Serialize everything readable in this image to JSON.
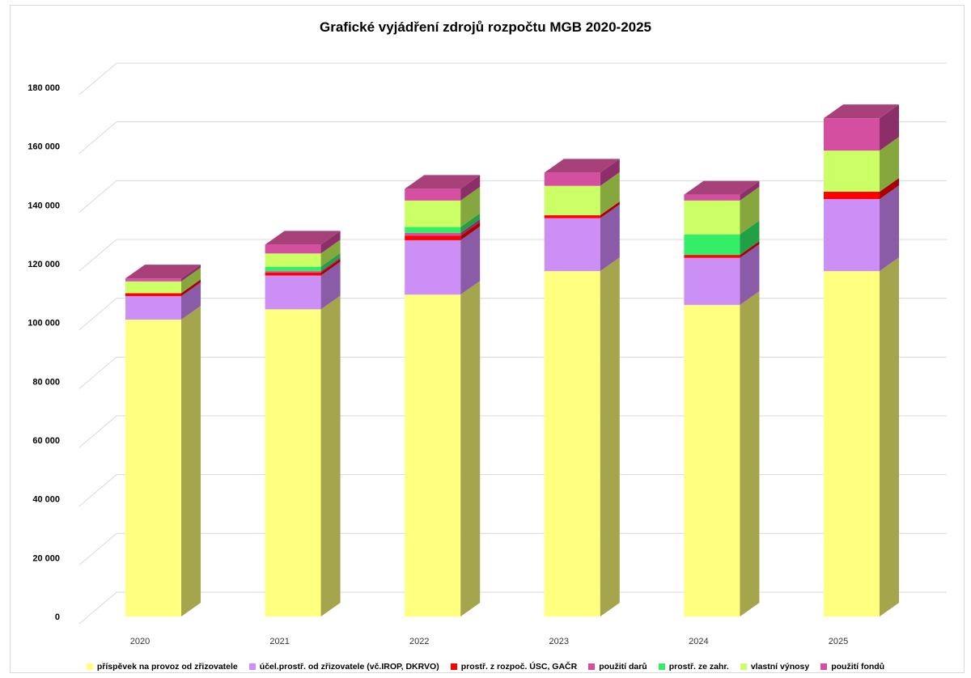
{
  "chart_data": {
    "type": "bar",
    "stacked": true,
    "three_d": true,
    "title": "Grafické vyjádření zdrojů rozpočtu MGB 2020-2025",
    "xlabel": "",
    "ylabel": "",
    "categories": [
      "2020",
      "2021",
      "2022",
      "2023",
      "2024",
      "2025"
    ],
    "ylim": [
      0,
      180000
    ],
    "yticks": [
      {
        "value": 0,
        "label": "0"
      },
      {
        "value": 20000,
        "label": "20 000"
      },
      {
        "value": 40000,
        "label": "40 000"
      },
      {
        "value": 60000,
        "label": "60 000"
      },
      {
        "value": 80000,
        "label": "80 000"
      },
      {
        "value": 100000,
        "label": "100 000"
      },
      {
        "value": 120000,
        "label": "120 000"
      },
      {
        "value": 140000,
        "label": "140 000"
      },
      {
        "value": 160000,
        "label": "160 000"
      },
      {
        "value": 180000,
        "label": "180 000"
      }
    ],
    "grid": true,
    "legend_position": "bottom",
    "series": [
      {
        "name": "příspěvek na provoz od zřizovatele",
        "color": "#ffff80",
        "side_color": "#a5a54d",
        "values": [
          101000,
          104500,
          109500,
          117500,
          106000,
          117500
        ]
      },
      {
        "name": "účel.prostř. od zřizovatele (vč.IROP, DKRVO)",
        "color": "#cc8ff5",
        "side_color": "#8a5ca8",
        "values": [
          8000,
          11500,
          18500,
          18000,
          16000,
          24500
        ]
      },
      {
        "name": "prostř. z rozpoč. ÚSC, GAČR",
        "color": "#ff0000",
        "side_color": "#a80000",
        "values": [
          1000,
          1000,
          1500,
          1000,
          1000,
          2500
        ]
      },
      {
        "name": "použití darů",
        "color": "#d44fa0",
        "side_color": "#8c2f68",
        "values": [
          0,
          500,
          1000,
          0,
          0,
          0
        ]
      },
      {
        "name": "prostř. ze zahr.",
        "color": "#33ee66",
        "side_color": "#22a045",
        "values": [
          0,
          1500,
          2000,
          0,
          7000,
          0
        ]
      },
      {
        "name": "vlastní výnosy",
        "color": "#ccff66",
        "side_color": "#86a63e",
        "values": [
          4000,
          4500,
          9000,
          10000,
          11500,
          14000
        ]
      },
      {
        "name": "použití fondů",
        "color": "#d44fa0",
        "side_color": "#8c2f68",
        "values": [
          1000,
          3000,
          4000,
          4500,
          2000,
          11000
        ]
      }
    ]
  }
}
